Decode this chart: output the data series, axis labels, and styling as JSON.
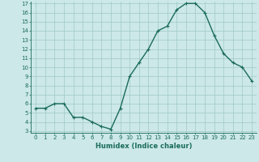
{
  "x": [
    0,
    1,
    2,
    3,
    4,
    5,
    6,
    7,
    8,
    9,
    10,
    11,
    12,
    13,
    14,
    15,
    16,
    17,
    18,
    19,
    20,
    21,
    22,
    23
  ],
  "y": [
    5.5,
    5.5,
    6.0,
    6.0,
    4.5,
    4.5,
    4.0,
    3.5,
    3.2,
    5.5,
    9.0,
    10.5,
    12.0,
    14.0,
    14.5,
    16.3,
    17.0,
    17.0,
    16.0,
    13.5,
    11.5,
    10.5,
    10.0,
    8.5
  ],
  "xlabel": "Humidex (Indice chaleur)",
  "ylim": [
    3,
    17
  ],
  "xlim": [
    -0.5,
    23.5
  ],
  "yticks": [
    3,
    4,
    5,
    6,
    7,
    8,
    9,
    10,
    11,
    12,
    13,
    14,
    15,
    16,
    17
  ],
  "xticks": [
    0,
    1,
    2,
    3,
    4,
    5,
    6,
    7,
    8,
    9,
    10,
    11,
    12,
    13,
    14,
    15,
    16,
    17,
    18,
    19,
    20,
    21,
    22,
    23
  ],
  "line_color": "#1a6b5a",
  "bg_color": "#cce8e8",
  "grid_color": "#a0c8c8",
  "marker": "+",
  "marker_size": 3.5,
  "line_width": 1.0,
  "tick_fontsize": 5.0,
  "xlabel_fontsize": 6.0
}
